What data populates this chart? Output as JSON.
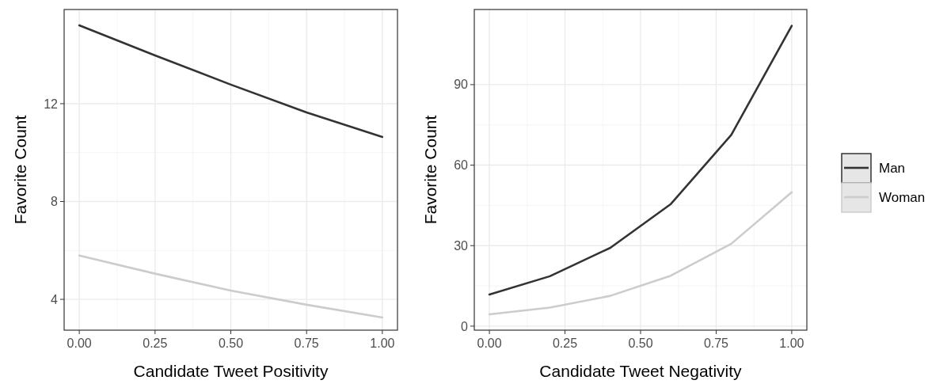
{
  "chart_data": [
    {
      "type": "line",
      "xlabel": "Candidate Tweet Positivity",
      "ylabel": "Favorite Count",
      "x": [
        0,
        0.25,
        0.5,
        0.75,
        1
      ],
      "xlim": [
        -0.05,
        1.05
      ],
      "xticks": [
        {
          "value": 0,
          "label": "0.00"
        },
        {
          "value": 0.25,
          "label": "0.25"
        },
        {
          "value": 0.5,
          "label": "0.50"
        },
        {
          "value": 0.75,
          "label": "0.75"
        },
        {
          "value": 1,
          "label": "1.00"
        }
      ],
      "ylim": [
        2.74,
        15.85
      ],
      "yticks": [
        4,
        8,
        12
      ],
      "grid": true,
      "legend": false,
      "series": [
        {
          "color": "#333333",
          "values": [
            15.2,
            13.97,
            12.78,
            11.64,
            10.64
          ]
        },
        {
          "color": "#cccccc",
          "values": [
            5.79,
            5.05,
            4.36,
            3.78,
            3.26
          ]
        }
      ]
    },
    {
      "type": "line",
      "xlabel": "Candidate Tweet Negativity",
      "ylabel": "Favorite Count",
      "x": [
        0,
        0.2,
        0.4,
        0.6,
        0.8,
        1
      ],
      "xlim": [
        -0.05,
        1.05
      ],
      "xticks": [
        {
          "value": 0,
          "label": "0.00"
        },
        {
          "value": 0.25,
          "label": "0.25"
        },
        {
          "value": 0.5,
          "label": "0.50"
        },
        {
          "value": 0.75,
          "label": "0.75"
        },
        {
          "value": 1,
          "label": "1.00"
        }
      ],
      "ylim": [
        -1.5,
        118
      ],
      "yticks": [
        0,
        30,
        60,
        90
      ],
      "grid": true,
      "legend": "right",
      "series": [
        {
          "name": "Man",
          "color": "#333333",
          "values": [
            11.8,
            18.6,
            29.2,
            45.5,
            71.3,
            111.9
          ]
        },
        {
          "name": "Woman",
          "color": "#cccccc",
          "values": [
            4.4,
            6.9,
            11.3,
            18.8,
            30.7,
            49.9
          ]
        }
      ]
    }
  ]
}
